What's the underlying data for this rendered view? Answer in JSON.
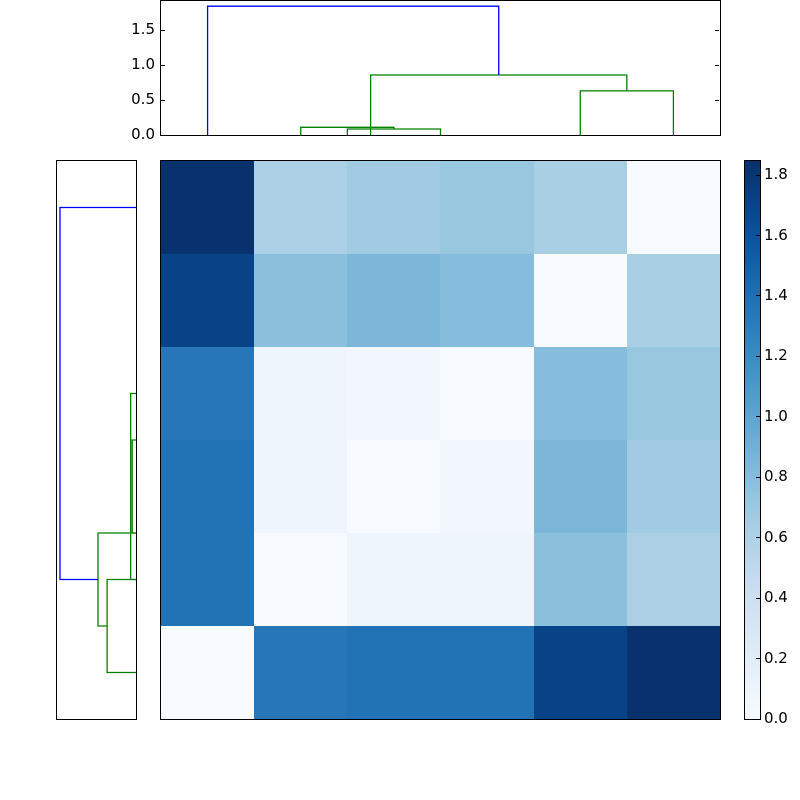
{
  "chart_data": {
    "type": "heatmap",
    "title": "",
    "subtype": "clustered heatmap with dendrograms",
    "matrix": [
      [
        1.84,
        0.62,
        0.68,
        0.72,
        0.63,
        0.0
      ],
      [
        1.72,
        0.78,
        0.85,
        0.8,
        0.0,
        0.63
      ],
      [
        1.35,
        0.08,
        0.06,
        0.0,
        0.8,
        0.72
      ],
      [
        1.38,
        0.08,
        0.0,
        0.06,
        0.85,
        0.68
      ],
      [
        1.38,
        0.0,
        0.08,
        0.08,
        0.78,
        0.62
      ],
      [
        0.0,
        1.35,
        1.38,
        1.38,
        1.72,
        1.84
      ]
    ],
    "colormap": "Blues",
    "colorbar": {
      "min": 0.0,
      "max": 1.85,
      "ticks": [
        "0.0",
        "0.2",
        "0.4",
        "0.6",
        "0.8",
        "1.0",
        "1.2",
        "1.4",
        "1.6",
        "1.8"
      ]
    },
    "top_dendrogram": {
      "ylim": [
        0,
        1.9
      ],
      "yticks": [
        "0.0",
        "0.5",
        "1.0",
        "1.5"
      ],
      "leaves": 6,
      "links": [
        {
          "left": 1.5,
          "right": 2.5,
          "height": 0.086,
          "color": "#008000"
        },
        {
          "left": 1.0,
          "right": 2.0,
          "height": 0.11,
          "color": "#008000"
        },
        {
          "left": 4.0,
          "right": 5.0,
          "height": 0.63,
          "color": "#008000"
        },
        {
          "left": 1.75,
          "right": 4.5,
          "height": 0.857,
          "color": "#008000"
        },
        {
          "left": 0.0,
          "right": 3.125,
          "height": 1.84,
          "color": "#0000ff"
        }
      ]
    },
    "left_dendrogram": {
      "orientation": "left",
      "leaves": 6,
      "links": [
        {
          "left": 2.5,
          "right": 3.5,
          "height": 0.05,
          "color": "#008000"
        },
        {
          "left": 2.0,
          "right": 4.0,
          "height": 0.07,
          "color": "#008000"
        },
        {
          "left": 4.0,
          "right": 5.0,
          "height": 0.38,
          "color": "#008000"
        },
        {
          "left": 3.5,
          "right": 4.5,
          "height": 0.5,
          "color": "#008000"
        },
        {
          "left": 0.0,
          "right": 4.0,
          "height": 1.0,
          "color": "#0000ff"
        }
      ]
    },
    "colors": {
      "link_above_threshold": "#0000ff",
      "cluster": "#008000"
    }
  }
}
